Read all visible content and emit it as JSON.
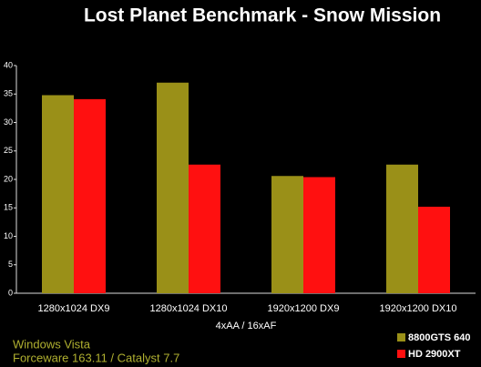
{
  "chart_data": {
    "type": "bar",
    "title": "Lost Planet Benchmark - Snow Mission",
    "categories": [
      "1280x1024 DX9",
      "1280x1024 DX10",
      "1920x1200 DX9",
      "1920x1200 DX10"
    ],
    "x_label": "4xAA / 16xAF",
    "series": [
      {
        "name": "8800GTS 640",
        "color": "#9a9018",
        "values": [
          34.8,
          37,
          20.6,
          22.6
        ]
      },
      {
        "name": "HD 2900XT",
        "color": "#ff1010",
        "values": [
          34.1,
          22.6,
          20.4,
          15.2
        ]
      }
    ],
    "ylim": [
      0,
      40
    ],
    "yticks": [
      0,
      5,
      10,
      15,
      20,
      25,
      30,
      35,
      40
    ],
    "notes": [
      "Windows Vista",
      "Forceware 163.11 / Catalyst 7.7"
    ],
    "legend": "bottom-right"
  }
}
